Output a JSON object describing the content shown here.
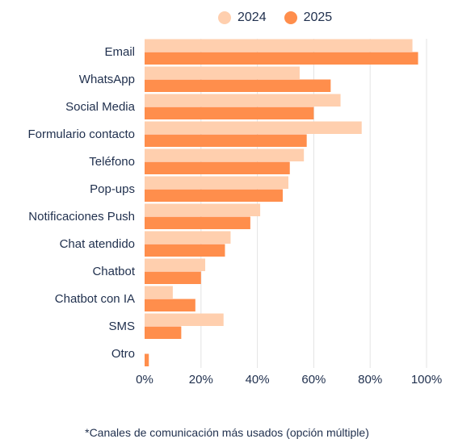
{
  "chart_data": {
    "type": "bar",
    "orientation": "horizontal",
    "categories": [
      "Email",
      "WhatsApp",
      "Social Media",
      "Formulario contacto",
      "Teléfono",
      "Pop-ups",
      "Notificaciones Push",
      "Chat atendido",
      "Chatbot",
      "Chatbot con IA",
      "SMS",
      "Otro"
    ],
    "series": [
      {
        "name": "2024",
        "color": "#ffcfae",
        "values": [
          95,
          55,
          69.5,
          77,
          56.5,
          51,
          41,
          30.5,
          21.5,
          10,
          28,
          0
        ]
      },
      {
        "name": "2025",
        "color": "#ff8e4c",
        "values": [
          97,
          66,
          60,
          57.5,
          51.5,
          49,
          37.5,
          28.5,
          20,
          18,
          13,
          1.5
        ]
      }
    ],
    "xlim": [
      0,
      100
    ],
    "xticks": [
      "0%",
      "20%",
      "40%",
      "60%",
      "80%",
      "100%"
    ],
    "grid": true,
    "legend_position": "top"
  },
  "footnote": "*Canales de comunicación más usados (opción múltiple)"
}
